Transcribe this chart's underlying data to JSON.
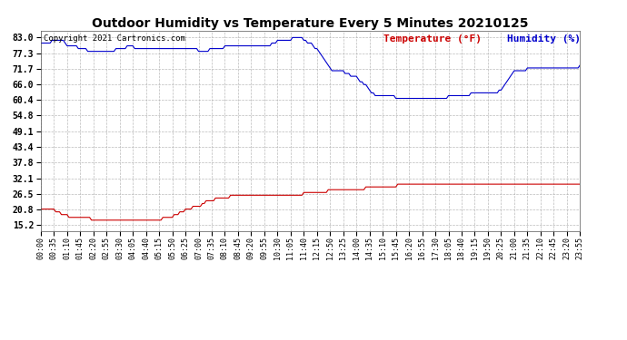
{
  "title": "Outdoor Humidity vs Temperature Every 5 Minutes 20210125",
  "copyright": "Copyright 2021 Cartronics.com",
  "legend_temp": "Temperature (°F)",
  "legend_hum": "Humidity (%)",
  "temp_color": "#cc0000",
  "humidity_color": "#0000cc",
  "background_color": "#ffffff",
  "grid_color": "#aaaaaa",
  "yticks": [
    15.2,
    20.8,
    26.5,
    32.1,
    37.8,
    43.4,
    49.1,
    54.8,
    60.4,
    66.0,
    71.7,
    77.3,
    83.0
  ],
  "ylim": [
    13.0,
    85.5
  ],
  "num_points": 288,
  "xtick_step": 7,
  "humidity_data": [
    81,
    81,
    81,
    81,
    81,
    81,
    82,
    82,
    82,
    82,
    82,
    82,
    82,
    81,
    80,
    80,
    80,
    80,
    80,
    80,
    79,
    79,
    79,
    79,
    79,
    78,
    78,
    78,
    78,
    78,
    78,
    78,
    78,
    78,
    78,
    78,
    78,
    78,
    78,
    78,
    79,
    79,
    79,
    79,
    79,
    79,
    80,
    80,
    80,
    80,
    79,
    79,
    79,
    79,
    79,
    79,
    79,
    79,
    79,
    79,
    79,
    79,
    79,
    79,
    79,
    79,
    79,
    79,
    79,
    79,
    79,
    79,
    79,
    79,
    79,
    79,
    79,
    79,
    79,
    79,
    79,
    79,
    79,
    79,
    78,
    78,
    78,
    78,
    78,
    78,
    79,
    79,
    79,
    79,
    79,
    79,
    79,
    79,
    80,
    80,
    80,
    80,
    80,
    80,
    80,
    80,
    80,
    80,
    80,
    80,
    80,
    80,
    80,
    80,
    80,
    80,
    80,
    80,
    80,
    80,
    80,
    80,
    80,
    81,
    81,
    81,
    82,
    82,
    82,
    82,
    82,
    82,
    82,
    82,
    83,
    83,
    83,
    83,
    83,
    83,
    82,
    82,
    81,
    81,
    81,
    80,
    79,
    79,
    78,
    77,
    76,
    75,
    74,
    73,
    72,
    71,
    71,
    71,
    71,
    71,
    71,
    71,
    70,
    70,
    70,
    69,
    69,
    69,
    69,
    68,
    67,
    67,
    66,
    66,
    65,
    64,
    63,
    63,
    62,
    62,
    62,
    62,
    62,
    62,
    62,
    62,
    62,
    62,
    62,
    61,
    61,
    61,
    61,
    61,
    61,
    61,
    61,
    61,
    61,
    61,
    61,
    61,
    61,
    61,
    61,
    61,
    61,
    61,
    61,
    61,
    61,
    61,
    61,
    61,
    61,
    61,
    61,
    62,
    62,
    62,
    62,
    62,
    62,
    62,
    62,
    62,
    62,
    62,
    62,
    63,
    63,
    63,
    63,
    63,
    63,
    63,
    63,
    63,
    63,
    63,
    63,
    63,
    63,
    63,
    64,
    64,
    65,
    66,
    67,
    68,
    69,
    70,
    71,
    71,
    71,
    71,
    71,
    71,
    71,
    72,
    72,
    72,
    72,
    72,
    72,
    72,
    72,
    72,
    72,
    72,
    72,
    72,
    72,
    72,
    72,
    72,
    72,
    72,
    72,
    72,
    72,
    72,
    72,
    72,
    72,
    72,
    72,
    73
  ],
  "temp_data": [
    21,
    21,
    21,
    21,
    21,
    21,
    21,
    21,
    20,
    20,
    20,
    19,
    19,
    19,
    19,
    18,
    18,
    18,
    18,
    18,
    18,
    18,
    18,
    18,
    18,
    18,
    18,
    17,
    17,
    17,
    17,
    17,
    17,
    17,
    17,
    17,
    17,
    17,
    17,
    17,
    17,
    17,
    17,
    17,
    17,
    17,
    17,
    17,
    17,
    17,
    17,
    17,
    17,
    17,
    17,
    17,
    17,
    17,
    17,
    17,
    17,
    17,
    17,
    17,
    17,
    18,
    18,
    18,
    18,
    18,
    18,
    19,
    19,
    19,
    20,
    20,
    20,
    21,
    21,
    21,
    21,
    22,
    22,
    22,
    22,
    22,
    23,
    23,
    24,
    24,
    24,
    24,
    24,
    25,
    25,
    25,
    25,
    25,
    25,
    25,
    25,
    26,
    26,
    26,
    26,
    26,
    26,
    26,
    26,
    26,
    26,
    26,
    26,
    26,
    26,
    26,
    26,
    26,
    26,
    26,
    26,
    26,
    26,
    26,
    26,
    26,
    26,
    26,
    26,
    26,
    26,
    26,
    26,
    26,
    26,
    26,
    26,
    26,
    26,
    26,
    27,
    27,
    27,
    27,
    27,
    27,
    27,
    27,
    27,
    27,
    27,
    27,
    27,
    28,
    28,
    28,
    28,
    28,
    28,
    28,
    28,
    28,
    28,
    28,
    28,
    28,
    28,
    28,
    28,
    28,
    28,
    28,
    28,
    29,
    29,
    29,
    29,
    29,
    29,
    29,
    29,
    29,
    29,
    29,
    29,
    29,
    29,
    29,
    29,
    29,
    30,
    30,
    30,
    30,
    30,
    30,
    30,
    30,
    30,
    30,
    30,
    30,
    30,
    30,
    30,
    30,
    30,
    30,
    30,
    30,
    30,
    30,
    30,
    30,
    30,
    30,
    30,
    30,
    30,
    30,
    30,
    30,
    30,
    30,
    30,
    30,
    30,
    30,
    30,
    30,
    30,
    30,
    30,
    30,
    30,
    30,
    30,
    30,
    30,
    30,
    30,
    30,
    30,
    30,
    30,
    30,
    30,
    30,
    30,
    30,
    30,
    30,
    30,
    30,
    30,
    30,
    30,
    30,
    30,
    30,
    30,
    30,
    30,
    30,
    30,
    30,
    30,
    30,
    30,
    30,
    30,
    30,
    30,
    30,
    30,
    30,
    30,
    30,
    30,
    30,
    30,
    30,
    30,
    30,
    30,
    30,
    30,
    30
  ]
}
